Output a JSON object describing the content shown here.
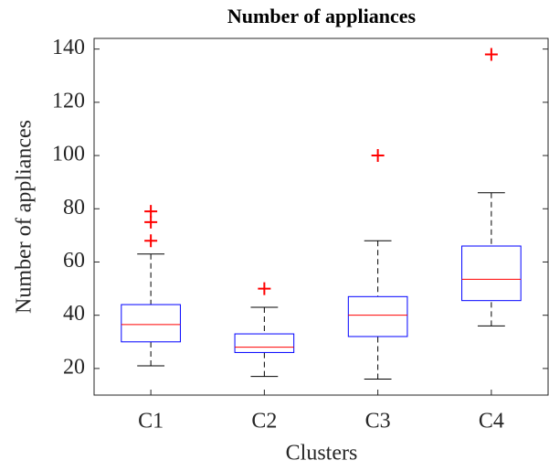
{
  "chart_data": {
    "type": "box",
    "title": "Number of appliances",
    "x_label": "Clusters",
    "y_label": "Number of appliances",
    "categories": [
      "C1",
      "C2",
      "C3",
      "C4"
    ],
    "boxes": [
      {
        "whislo": 21,
        "q1": 30,
        "med": 36.5,
        "q3": 44,
        "whishi": 63,
        "fliers": [
          68,
          75,
          79
        ]
      },
      {
        "whislo": 17,
        "q1": 26,
        "med": 28,
        "q3": 33,
        "whishi": 43,
        "fliers": [
          50
        ]
      },
      {
        "whislo": 16,
        "q1": 32,
        "med": 40,
        "q3": 47,
        "whishi": 68,
        "fliers": [
          100
        ]
      },
      {
        "whislo": 36,
        "q1": 45.5,
        "med": 53.5,
        "q3": 66,
        "whishi": 86,
        "fliers": [
          138
        ]
      }
    ],
    "ylim": [
      10,
      144
    ],
    "yticks": [
      20,
      40,
      60,
      80,
      100,
      120,
      140
    ],
    "box_color": "#0000ff",
    "median_color": "#ff0000",
    "whisker_color": "#000000",
    "flier_color": "#ff0000"
  }
}
